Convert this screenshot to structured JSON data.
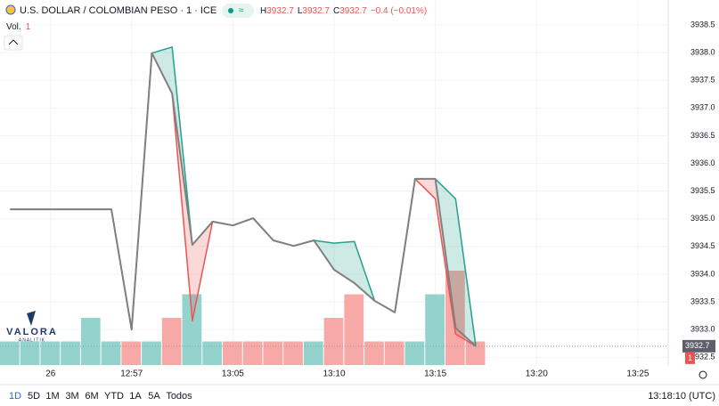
{
  "header": {
    "symbol": "U.S. DOLLAR / COLOMBIAN PESO · 1 · ICE",
    "ohlc": [
      {
        "label": "H",
        "value": "3932.7"
      },
      {
        "label": "L",
        "value": "3932.7"
      },
      {
        "label": "C",
        "value": "3932.7"
      }
    ],
    "change": "−0.4 (−0.01%)",
    "volume_label": "Vol."
  },
  "logo": {
    "name": "VALORA",
    "tagline": "ANALITIK"
  },
  "chart_data": {
    "type": "line",
    "x": [
      0,
      1,
      2,
      3,
      4,
      5,
      6,
      7,
      8,
      9,
      10,
      11,
      12,
      13,
      14,
      15,
      16,
      17,
      18,
      19,
      20,
      21,
      22,
      23
    ],
    "xlim": [
      -0.5,
      32.5
    ],
    "xticks": [
      {
        "value": 2,
        "label": "26"
      },
      {
        "value": 6,
        "label": "12:57"
      },
      {
        "value": 11,
        "label": "13:05"
      },
      {
        "value": 16,
        "label": "13:10"
      },
      {
        "value": 21,
        "label": "13:15"
      },
      {
        "value": 26,
        "label": "13:20"
      },
      {
        "value": 31,
        "label": "13:25"
      }
    ],
    "ylim": [
      3932.36,
      3938.74
    ],
    "yticks": [
      {
        "value": 3932.5,
        "label": "3932.5"
      },
      {
        "value": 3933,
        "label": "3933.0"
      },
      3933.5,
      {
        "value": 3934,
        "label": "3934.0"
      },
      3934.5,
      {
        "value": 3935,
        "label": "3935.0"
      },
      3935.5,
      {
        "value": 3936,
        "label": "3936.0"
      },
      3936.5,
      {
        "value": 3937,
        "label": "3937.0"
      },
      3937.5,
      {
        "value": 3938,
        "label": "3938.0"
      },
      3938.5
    ],
    "grid": true,
    "series": [
      {
        "name": "Close",
        "color": "#808080",
        "values": [
          3935.17,
          3935.17,
          3935.17,
          3935.17,
          3935.17,
          3935.17,
          3933.0,
          3937.99,
          3937.26,
          3934.53,
          3934.95,
          3934.88,
          3935.01,
          3934.61,
          3934.51,
          3934.61,
          3934.08,
          3933.84,
          3933.52,
          3933.31,
          3935.72,
          3935.72,
          3933.03,
          3932.7
        ]
      },
      {
        "name": "High",
        "color": "#22a08a",
        "values": [
          3935.17,
          3935.17,
          3935.17,
          3935.17,
          3935.17,
          3935.17,
          3933.0,
          3937.99,
          3938.1,
          3934.53,
          3934.95,
          3934.88,
          3935.01,
          3934.61,
          3934.51,
          3934.61,
          3934.56,
          3934.59,
          3933.52,
          3933.31,
          3935.72,
          3935.72,
          3935.36,
          3932.7
        ]
      },
      {
        "name": "Low",
        "color": "#ef5350",
        "values": [
          3935.17,
          3935.17,
          3935.17,
          3935.17,
          3935.17,
          3935.17,
          3933.0,
          3937.99,
          3937.26,
          3933.16,
          3934.95,
          3934.88,
          3935.01,
          3934.61,
          3934.51,
          3934.61,
          3934.08,
          3933.84,
          3933.52,
          3933.31,
          3935.72,
          3935.36,
          3932.92,
          3932.7
        ]
      }
    ],
    "last_price": "3932.7",
    "volume": {
      "values": [
        1,
        1,
        1,
        1,
        2,
        1,
        1,
        1,
        2,
        3,
        1,
        1,
        1,
        1,
        1,
        1,
        2,
        3,
        1,
        1,
        1,
        3,
        4,
        1
      ],
      "colors": [
        "#93d3cc",
        "#93d3cc",
        "#93d3cc",
        "#93d3cc",
        "#93d3cc",
        "#93d3cc",
        "#f7a9a7",
        "#93d3cc",
        "#f7a9a7",
        "#93d3cc",
        "#93d3cc",
        "#f7a9a7",
        "#f7a9a7",
        "#f7a9a7",
        "#f7a9a7",
        "#93d3cc",
        "#f7a9a7",
        "#f7a9a7",
        "#f7a9a7",
        "#f7a9a7",
        "#93d3cc",
        "#93d3cc",
        "#f7a9a7",
        "#f7a9a7"
      ]
    }
  },
  "toolbar": {
    "ranges": [
      "1D",
      "5D",
      "1M",
      "3M",
      "6M",
      "YTD",
      "1A",
      "5A",
      "Todos"
    ],
    "clock": "13:18:10 (UTC)"
  }
}
